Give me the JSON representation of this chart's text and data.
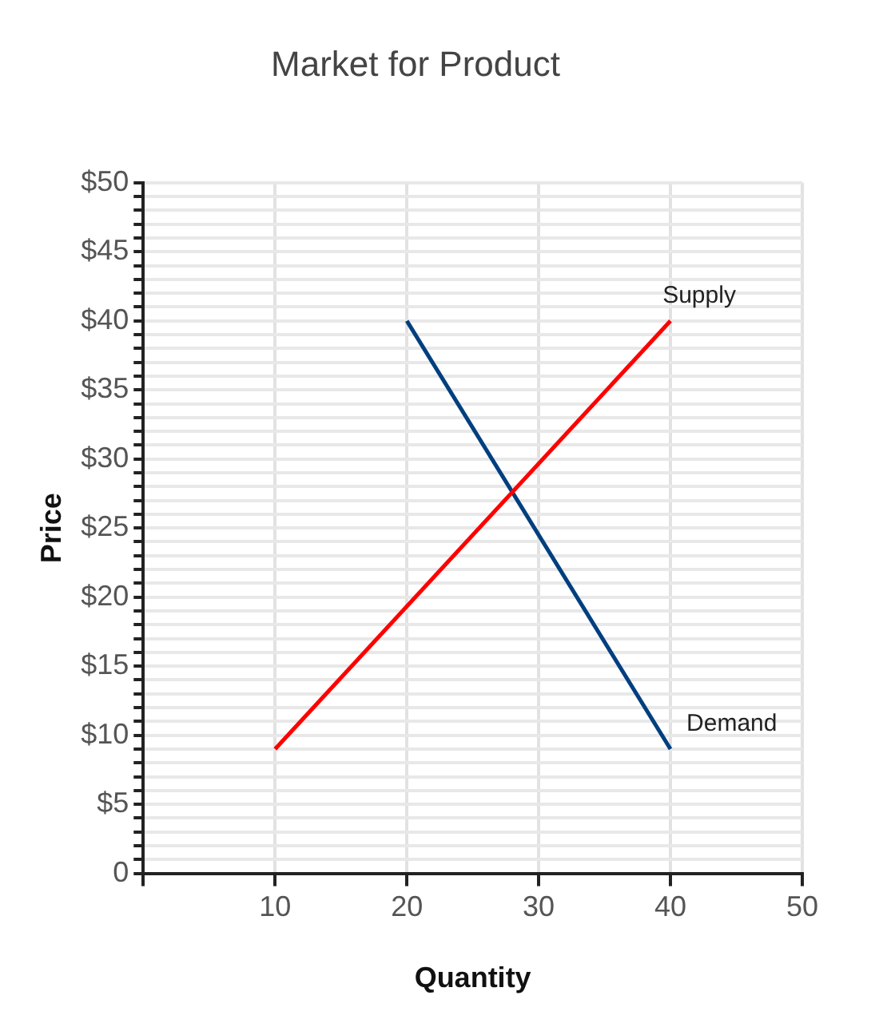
{
  "chart_data": {
    "type": "line",
    "title": "Market for Product",
    "xlabel": "Quantity",
    "ylabel": "Price",
    "series": [
      {
        "name": "Supply",
        "color": "#ff0000",
        "x": [
          10,
          40
        ],
        "values": [
          9,
          40
        ]
      },
      {
        "name": "Demand",
        "color": "#003f7f",
        "x": [
          20,
          40
        ],
        "values": [
          40,
          9
        ]
      }
    ],
    "xlim": [
      0,
      50
    ],
    "xticks": [
      {
        "value": 0,
        "label": null
      },
      10,
      20,
      30,
      40,
      50
    ],
    "ylim": [
      0,
      50
    ],
    "yticks": [
      0,
      {
        "value": 1,
        "label": null
      },
      {
        "value": 2,
        "label": null
      },
      {
        "value": 3,
        "label": null
      },
      {
        "value": 4,
        "label": null
      },
      {
        "value": 5,
        "label": "$5"
      },
      {
        "value": 6,
        "label": null
      },
      {
        "value": 7,
        "label": null
      },
      {
        "value": 8,
        "label": null
      },
      {
        "value": 9,
        "label": null
      },
      {
        "value": 10,
        "label": "$10"
      },
      {
        "value": 11,
        "label": null
      },
      {
        "value": 12,
        "label": null
      },
      {
        "value": 13,
        "label": null
      },
      {
        "value": 14,
        "label": null
      },
      {
        "value": 15,
        "label": "$15"
      },
      {
        "value": 16,
        "label": null
      },
      {
        "value": 17,
        "label": null
      },
      {
        "value": 18,
        "label": null
      },
      {
        "value": 19,
        "label": null
      },
      {
        "value": 20,
        "label": "$20"
      },
      {
        "value": 21,
        "label": null
      },
      {
        "value": 22,
        "label": null
      },
      {
        "value": 23,
        "label": null
      },
      {
        "value": 24,
        "label": null
      },
      {
        "value": 25,
        "label": "$25"
      },
      {
        "value": 26,
        "label": null
      },
      {
        "value": 27,
        "label": null
      },
      {
        "value": 28,
        "label": null
      },
      {
        "value": 29,
        "label": null
      },
      {
        "value": 30,
        "label": "$30"
      },
      {
        "value": 31,
        "label": null
      },
      {
        "value": 32,
        "label": null
      },
      {
        "value": 33,
        "label": null
      },
      {
        "value": 34,
        "label": null
      },
      {
        "value": 35,
        "label": "$35"
      },
      {
        "value": 36,
        "label": null
      },
      {
        "value": 37,
        "label": null
      },
      {
        "value": 38,
        "label": null
      },
      {
        "value": 39,
        "label": null
      },
      {
        "value": 40,
        "label": "$40"
      },
      {
        "value": 41,
        "label": null
      },
      {
        "value": 42,
        "label": null
      },
      {
        "value": 43,
        "label": null
      },
      {
        "value": 44,
        "label": null
      },
      {
        "value": 45,
        "label": "$45"
      },
      {
        "value": 46,
        "label": null
      },
      {
        "value": 47,
        "label": null
      },
      {
        "value": 48,
        "label": null
      },
      {
        "value": 49,
        "label": null
      },
      {
        "value": 50,
        "label": "$50"
      }
    ],
    "grid": true,
    "legend": false,
    "marker": "none",
    "line_style": "solid"
  }
}
